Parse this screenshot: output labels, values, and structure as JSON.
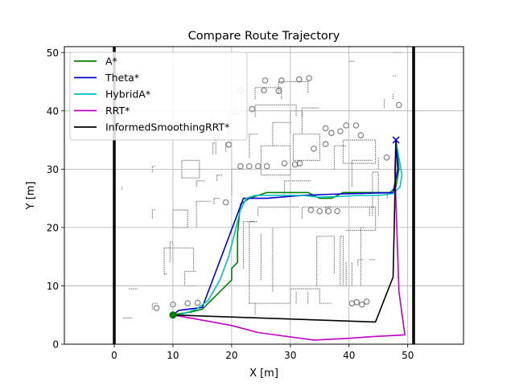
{
  "chart_data": {
    "type": "line",
    "title": "Compare Route Trajectory",
    "xlabel": "X [m]",
    "ylabel": "Y [m]",
    "xlim": [
      -8.5,
      59.5
    ],
    "ylim": [
      0,
      51
    ],
    "xticks": [
      0,
      10,
      20,
      30,
      40,
      50
    ],
    "yticks": [
      0,
      10,
      20,
      30,
      40,
      50
    ],
    "grid": true,
    "legend_position": "top-left",
    "boundary": {
      "x_left": 0,
      "x_right": 51,
      "color": "#000000"
    },
    "start": {
      "x": 10,
      "y": 5,
      "color": "#008000"
    },
    "goal": {
      "x": 48,
      "y": 35,
      "color": "#0000cc",
      "marker": "x"
    },
    "series": [
      {
        "name": "A*",
        "color": "#008000",
        "x": [
          10,
          11,
          13,
          15,
          16,
          18,
          20,
          20,
          21,
          21,
          21.5,
          23,
          26,
          30,
          33,
          35,
          37,
          39,
          42,
          45,
          47,
          48,
          48.5,
          48
        ],
        "y": [
          5,
          5.2,
          5.5,
          6,
          7,
          9,
          11,
          13,
          14,
          19,
          24,
          25,
          26,
          26,
          26,
          25,
          25,
          26,
          26,
          26,
          26,
          27,
          30,
          35
        ]
      },
      {
        "name": "Theta*",
        "color": "#0000cc",
        "x": [
          10,
          11,
          15,
          22,
          26,
          32,
          37,
          47.5,
          48.3,
          48
        ],
        "y": [
          5,
          5.8,
          6.3,
          25,
          25,
          25.5,
          25.7,
          26,
          30,
          35
        ]
      },
      {
        "name": "HybridA*",
        "color": "#00bfbf",
        "x": [
          10,
          11,
          12,
          14,
          16,
          18,
          19.5,
          20.5,
          21.5,
          22.5,
          24,
          28,
          32,
          35,
          38,
          42,
          45,
          47.5,
          48.7,
          49,
          48
        ],
        "y": [
          5,
          5,
          5.3,
          6,
          7.5,
          11,
          15,
          19,
          23,
          25,
          25.5,
          25.5,
          25.5,
          25.2,
          25.3,
          25.5,
          25.5,
          25.8,
          27,
          29,
          35
        ]
      },
      {
        "name": "RRT*",
        "color": "#bf00bf",
        "x": [
          10,
          14,
          20,
          24.5,
          34,
          40,
          44,
          49.5,
          48.5,
          47.8,
          48
        ],
        "y": [
          5,
          4.3,
          3.2,
          2,
          0.7,
          1,
          1.3,
          1.6,
          9,
          30,
          35
        ]
      },
      {
        "name": "InformedSmoothingRRT*",
        "color": "#000000",
        "x": [
          10,
          44.5,
          47.5,
          47.7,
          48
        ],
        "y": [
          5,
          3.8,
          11.5,
          20,
          35
        ]
      }
    ],
    "map": {
      "color": "#555555",
      "polylines": [
        [
          [
            16.8,
            32.5
          ],
          [
            16.8,
            34.5
          ],
          [
            17.3,
            34.5
          ],
          [
            17.3,
            32.5
          ]
        ],
        [
          [
            19.5,
            35.5
          ],
          [
            19.5,
            39.5
          ],
          [
            21.5,
            39.5
          ]
        ],
        [
          [
            20,
            25.5
          ],
          [
            20,
            30
          ],
          [
            22.5,
            30
          ]
        ],
        [
          [
            23,
            32
          ],
          [
            23,
            36
          ],
          [
            24.5,
            36
          ]
        ],
        [
          [
            24,
            39
          ],
          [
            24,
            41
          ],
          [
            31,
            41
          ],
          [
            31,
            39
          ]
        ],
        [
          [
            24,
            42
          ],
          [
            24,
            44
          ],
          [
            28.5,
            44
          ],
          [
            28.5,
            42
          ]
        ],
        [
          [
            25,
            29
          ],
          [
            25,
            34
          ],
          [
            30,
            34
          ],
          [
            30,
            29
          ],
          [
            25,
            29
          ]
        ],
        [
          [
            27,
            34
          ],
          [
            27,
            38
          ],
          [
            30,
            38
          ]
        ],
        [
          [
            28,
            43
          ],
          [
            28,
            45
          ],
          [
            33,
            45
          ],
          [
            33,
            43
          ]
        ],
        [
          [
            30,
            36
          ],
          [
            30,
            40
          ],
          [
            32,
            40
          ],
          [
            32,
            36
          ]
        ],
        [
          [
            30.5,
            31.5
          ],
          [
            30.5,
            36
          ],
          [
            35,
            36
          ],
          [
            35,
            31.5
          ],
          [
            30.5,
            31.5
          ]
        ],
        [
          [
            29,
            25.5
          ],
          [
            29,
            28
          ],
          [
            33.5,
            28
          ]
        ],
        [
          [
            32,
            39
          ],
          [
            32,
            40.5
          ],
          [
            35,
            40.5
          ]
        ],
        [
          [
            37.5,
            30
          ],
          [
            37.5,
            34
          ],
          [
            39.5,
            34
          ]
        ],
        [
          [
            39,
            31
          ],
          [
            39,
            35
          ],
          [
            44.5,
            35
          ],
          [
            44.5,
            31
          ],
          [
            39,
            31
          ]
        ],
        [
          [
            40.5,
            27
          ],
          [
            40.5,
            31.5
          ],
          [
            44,
            31.5
          ]
        ],
        [
          [
            32,
            21.5
          ],
          [
            32,
            23.5
          ],
          [
            44.5,
            23.5
          ],
          [
            44.5,
            19.5
          ],
          [
            39.5,
            19.5
          ]
        ],
        [
          [
            24.5,
            22
          ],
          [
            24.5,
            23.5
          ],
          [
            31.5,
            23.5
          ]
        ],
        [
          [
            22,
            13
          ],
          [
            22,
            21
          ],
          [
            24,
            21
          ]
        ],
        [
          [
            23,
            7
          ],
          [
            23,
            21
          ],
          [
            24.5,
            21
          ]
        ],
        [
          [
            23,
            7
          ],
          [
            30,
            7
          ],
          [
            30,
            9.5
          ],
          [
            35,
            9.5
          ],
          [
            35,
            7
          ],
          [
            37,
            7
          ]
        ],
        [
          [
            25,
            11
          ],
          [
            25,
            19
          ]
        ],
        [
          [
            27,
            9
          ],
          [
            27,
            20
          ]
        ],
        [
          [
            34.5,
            10
          ],
          [
            34.5,
            18.5
          ],
          [
            37.5,
            18.5
          ],
          [
            37.5,
            12
          ]
        ],
        [
          [
            38.5,
            10
          ],
          [
            38.5,
            18.5
          ],
          [
            39,
            18.5
          ],
          [
            39,
            10
          ]
        ],
        [
          [
            39.5,
            10
          ],
          [
            39.5,
            14
          ]
        ],
        [
          [
            40.5,
            10
          ],
          [
            40.5,
            14
          ]
        ],
        [
          [
            42,
            10
          ],
          [
            42,
            20
          ],
          [
            42.5,
            20
          ]
        ],
        [
          [
            41.5,
            13.5
          ],
          [
            41.5,
            14.5
          ],
          [
            42.5,
            14.5
          ]
        ],
        [
          [
            31,
            7
          ],
          [
            31,
            9
          ]
        ],
        [
          [
            33,
            7
          ],
          [
            33,
            9
          ]
        ],
        [
          [
            24,
            7
          ],
          [
            24,
            5
          ]
        ],
        [
          [
            43.5,
            22
          ],
          [
            43.5,
            23.5
          ],
          [
            44.5,
            23.5
          ]
        ],
        [
          [
            43.5,
            14.5
          ],
          [
            44.5,
            14.5
          ]
        ],
        [
          [
            44,
            22
          ],
          [
            44,
            29.5
          ],
          [
            45,
            29.5
          ],
          [
            45,
            22
          ]
        ],
        [
          [
            8.5,
            12
          ],
          [
            8.5,
            16.5
          ],
          [
            13.5,
            16.5
          ],
          [
            13.5,
            12.5
          ]
        ],
        [
          [
            8.5,
            12
          ],
          [
            9,
            12
          ]
        ],
        [
          [
            9.5,
            14
          ],
          [
            9.5,
            17.5
          ],
          [
            10,
            17.5
          ],
          [
            10,
            14
          ]
        ],
        [
          [
            10,
            20
          ],
          [
            10,
            23
          ],
          [
            12.5,
            23
          ],
          [
            12.5,
            20
          ],
          [
            10,
            20
          ]
        ],
        [
          [
            12,
            10
          ],
          [
            12,
            12.5
          ],
          [
            14,
            12.5
          ]
        ],
        [
          [
            12.5,
            10
          ],
          [
            14,
            10
          ]
        ],
        [
          [
            14,
            20
          ],
          [
            14,
            24.5
          ],
          [
            16.5,
            24.5
          ]
        ],
        [
          [
            11.5,
            28.5
          ],
          [
            11.5,
            31.5
          ],
          [
            14.5,
            31.5
          ],
          [
            14.5,
            28.5
          ],
          [
            11.5,
            28.5
          ]
        ],
        [
          [
            14,
            27
          ],
          [
            14,
            28
          ],
          [
            15.5,
            28
          ]
        ],
        [
          [
            6.5,
            29.5
          ],
          [
            6.5,
            30.5
          ],
          [
            7,
            30.5
          ]
        ],
        [
          [
            6.5,
            21.5
          ],
          [
            6.5,
            23
          ],
          [
            7,
            23
          ]
        ],
        [
          [
            6.5,
            6
          ],
          [
            6.5,
            7
          ],
          [
            7.5,
            7
          ]
        ],
        [
          [
            1.5,
            4.5
          ],
          [
            3,
            4.5
          ]
        ],
        [
          [
            2.5,
            9.5
          ],
          [
            4,
            9.5
          ]
        ],
        [
          [
            1.3,
            26.5
          ],
          [
            1.3,
            27
          ]
        ],
        [
          [
            17,
            24
          ],
          [
            17,
            25
          ],
          [
            18,
            25
          ]
        ],
        [
          [
            17.5,
            28
          ],
          [
            17.5,
            29
          ],
          [
            18.5,
            29
          ]
        ],
        [
          [
            19,
            33
          ],
          [
            19,
            34.5
          ]
        ],
        [
          [
            20.5,
            40.5
          ],
          [
            21,
            40.5
          ]
        ],
        [
          [
            22,
            45.5
          ],
          [
            22.5,
            45.5
          ]
        ],
        [
          [
            36,
            22.5
          ],
          [
            36,
            23.5
          ],
          [
            37,
            23.5
          ]
        ],
        [
          [
            46.5,
            25
          ],
          [
            46.5,
            26
          ]
        ],
        [
          [
            46,
            40.5
          ],
          [
            46,
            42
          ]
        ],
        [
          [
            47.5,
            42
          ],
          [
            47.5,
            43
          ]
        ],
        [
          [
            47.5,
            46
          ],
          [
            48,
            46
          ]
        ],
        [
          [
            47.5,
            50
          ],
          [
            49,
            50
          ]
        ],
        [
          [
            40,
            48.5
          ],
          [
            41,
            48.5
          ]
        ],
        [
          [
            45,
            30
          ],
          [
            45,
            32
          ]
        ],
        [
          [
            16.5,
            38.5
          ],
          [
            17,
            38.5
          ]
        ]
      ],
      "blobs": [
        [
          21.5,
          30.5
        ],
        [
          23,
          30.5
        ],
        [
          24.5,
          30.5
        ],
        [
          26,
          30.5
        ],
        [
          25.7,
          45.2
        ],
        [
          28.5,
          45.2
        ],
        [
          31.5,
          45.4
        ],
        [
          33.2,
          45.6
        ],
        [
          34,
          33.5
        ],
        [
          36,
          34.3
        ],
        [
          39.5,
          37.5
        ],
        [
          41.2,
          37.5
        ],
        [
          33.5,
          23
        ],
        [
          35,
          22.8
        ],
        [
          36.5,
          22.8
        ],
        [
          38,
          22.8
        ],
        [
          23.5,
          40.3
        ],
        [
          25.5,
          43.5
        ],
        [
          28,
          43.4
        ],
        [
          21.5,
          43.5
        ],
        [
          12.5,
          7
        ],
        [
          10,
          6.8
        ],
        [
          14.2,
          7.1
        ],
        [
          7.2,
          6.2
        ],
        [
          36,
          37
        ],
        [
          37,
          36.2
        ],
        [
          38.5,
          36.5
        ],
        [
          42,
          35.8
        ],
        [
          40.5,
          7
        ],
        [
          41.3,
          7.2
        ],
        [
          42.2,
          6.8
        ],
        [
          43,
          7.3
        ],
        [
          19,
          24.3
        ],
        [
          19.5,
          34.2
        ],
        [
          17.3,
          35.4
        ],
        [
          48.5,
          41
        ],
        [
          46.4,
          32
        ],
        [
          30.8,
          30.8
        ],
        [
          29,
          31
        ],
        [
          31.6,
          31
        ]
      ]
    }
  }
}
